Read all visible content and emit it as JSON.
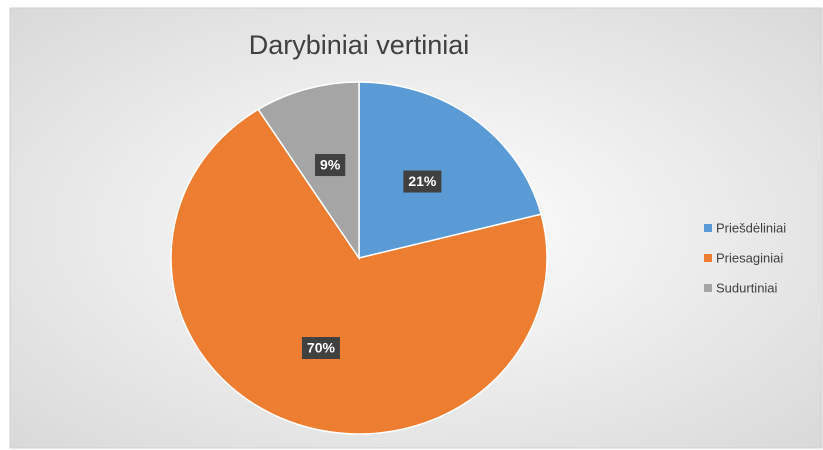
{
  "chart_data": {
    "type": "pie",
    "title": "Darybiniai vertiniai",
    "categories": [
      "Priešdėliniai",
      "Priesaginiai",
      "Sudurtiniai"
    ],
    "values": [
      21,
      70,
      9
    ],
    "value_labels": [
      "21%",
      "70%",
      "9%"
    ],
    "colors": [
      "#5b9bd5",
      "#ed7d31",
      "#a5a5a5"
    ],
    "legend": "right"
  }
}
